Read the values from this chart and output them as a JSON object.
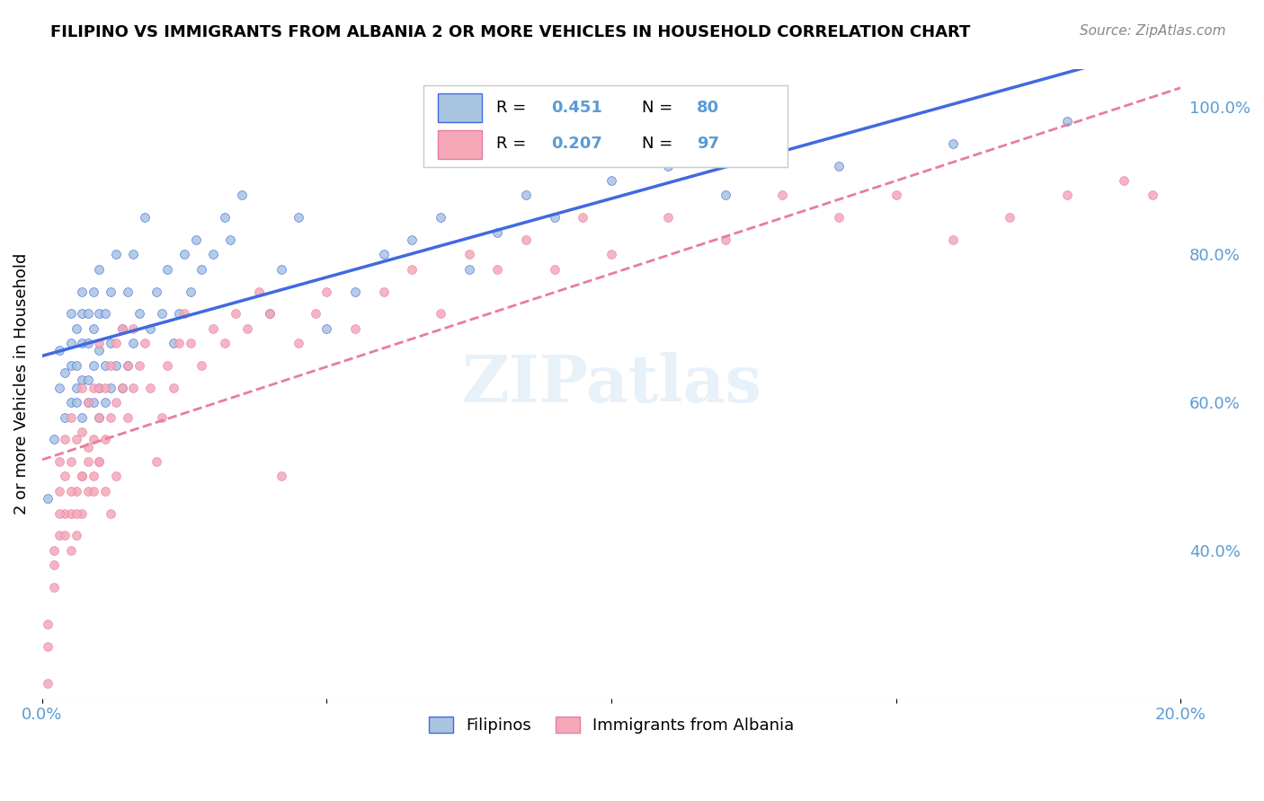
{
  "title": "FILIPINO VS IMMIGRANTS FROM ALBANIA 2 OR MORE VEHICLES IN HOUSEHOLD CORRELATION CHART",
  "source": "Source: ZipAtlas.com",
  "xlabel_bottom": "",
  "ylabel": "2 or more Vehicles in Household",
  "watermark": "ZIPatlas",
  "x_min": 0.0,
  "x_max": 0.2,
  "y_min": 0.2,
  "y_max": 1.05,
  "x_ticks": [
    0.0,
    0.05,
    0.1,
    0.15,
    0.2
  ],
  "x_tick_labels": [
    "0.0%",
    "",
    "",
    "",
    "20.0%"
  ],
  "y_ticks_right": [
    0.4,
    0.6,
    0.8,
    1.0
  ],
  "y_tick_labels_right": [
    "40.0%",
    "60.0%",
    "80.0%",
    "100.0%"
  ],
  "legend_r1": "R = 0.451",
  "legend_n1": "N = 80",
  "legend_r2": "R = 0.207",
  "legend_n2": "N = 97",
  "color_filipino": "#a8c4e0",
  "color_albania": "#f4a8b8",
  "color_line_filipino": "#4169e1",
  "color_line_albania": "#e87ca0",
  "color_tick_label": "#5b9bd5",
  "filipinos_x": [
    0.001,
    0.002,
    0.003,
    0.003,
    0.004,
    0.004,
    0.005,
    0.005,
    0.005,
    0.005,
    0.006,
    0.006,
    0.006,
    0.006,
    0.007,
    0.007,
    0.007,
    0.007,
    0.007,
    0.008,
    0.008,
    0.008,
    0.008,
    0.009,
    0.009,
    0.009,
    0.009,
    0.01,
    0.01,
    0.01,
    0.01,
    0.01,
    0.011,
    0.011,
    0.011,
    0.012,
    0.012,
    0.012,
    0.013,
    0.013,
    0.014,
    0.014,
    0.015,
    0.015,
    0.016,
    0.016,
    0.017,
    0.018,
    0.019,
    0.02,
    0.021,
    0.022,
    0.023,
    0.024,
    0.025,
    0.026,
    0.027,
    0.028,
    0.03,
    0.032,
    0.033,
    0.035,
    0.04,
    0.042,
    0.045,
    0.05,
    0.055,
    0.06,
    0.065,
    0.07,
    0.075,
    0.08,
    0.085,
    0.09,
    0.1,
    0.11,
    0.12,
    0.14,
    0.16,
    0.18
  ],
  "filipinos_y": [
    0.47,
    0.55,
    0.62,
    0.67,
    0.58,
    0.64,
    0.6,
    0.65,
    0.68,
    0.72,
    0.6,
    0.62,
    0.65,
    0.7,
    0.58,
    0.63,
    0.68,
    0.72,
    0.75,
    0.6,
    0.63,
    0.68,
    0.72,
    0.6,
    0.65,
    0.7,
    0.75,
    0.58,
    0.62,
    0.67,
    0.72,
    0.78,
    0.6,
    0.65,
    0.72,
    0.62,
    0.68,
    0.75,
    0.65,
    0.8,
    0.62,
    0.7,
    0.65,
    0.75,
    0.68,
    0.8,
    0.72,
    0.85,
    0.7,
    0.75,
    0.72,
    0.78,
    0.68,
    0.72,
    0.8,
    0.75,
    0.82,
    0.78,
    0.8,
    0.85,
    0.82,
    0.88,
    0.72,
    0.78,
    0.85,
    0.7,
    0.75,
    0.8,
    0.82,
    0.85,
    0.78,
    0.83,
    0.88,
    0.85,
    0.9,
    0.92,
    0.88,
    0.92,
    0.95,
    0.98
  ],
  "albania_x": [
    0.001,
    0.001,
    0.002,
    0.002,
    0.003,
    0.003,
    0.003,
    0.004,
    0.004,
    0.004,
    0.005,
    0.005,
    0.005,
    0.005,
    0.006,
    0.006,
    0.006,
    0.007,
    0.007,
    0.007,
    0.007,
    0.008,
    0.008,
    0.008,
    0.009,
    0.009,
    0.009,
    0.01,
    0.01,
    0.01,
    0.01,
    0.011,
    0.011,
    0.012,
    0.012,
    0.013,
    0.013,
    0.014,
    0.014,
    0.015,
    0.015,
    0.016,
    0.016,
    0.017,
    0.018,
    0.019,
    0.02,
    0.021,
    0.022,
    0.023,
    0.024,
    0.025,
    0.026,
    0.028,
    0.03,
    0.032,
    0.034,
    0.036,
    0.038,
    0.04,
    0.042,
    0.045,
    0.048,
    0.05,
    0.055,
    0.06,
    0.065,
    0.07,
    0.075,
    0.08,
    0.085,
    0.09,
    0.095,
    0.1,
    0.11,
    0.12,
    0.13,
    0.14,
    0.15,
    0.16,
    0.17,
    0.18,
    0.19,
    0.195,
    0.001,
    0.002,
    0.003,
    0.004,
    0.005,
    0.006,
    0.007,
    0.008,
    0.009,
    0.01,
    0.011,
    0.012,
    0.013
  ],
  "albania_y": [
    0.22,
    0.27,
    0.35,
    0.4,
    0.42,
    0.48,
    0.52,
    0.45,
    0.5,
    0.55,
    0.4,
    0.45,
    0.52,
    0.58,
    0.42,
    0.48,
    0.55,
    0.45,
    0.5,
    0.56,
    0.62,
    0.48,
    0.54,
    0.6,
    0.5,
    0.55,
    0.62,
    0.52,
    0.58,
    0.62,
    0.68,
    0.55,
    0.62,
    0.58,
    0.65,
    0.6,
    0.68,
    0.62,
    0.7,
    0.58,
    0.65,
    0.62,
    0.7,
    0.65,
    0.68,
    0.62,
    0.52,
    0.58,
    0.65,
    0.62,
    0.68,
    0.72,
    0.68,
    0.65,
    0.7,
    0.68,
    0.72,
    0.7,
    0.75,
    0.72,
    0.5,
    0.68,
    0.72,
    0.75,
    0.7,
    0.75,
    0.78,
    0.72,
    0.8,
    0.78,
    0.82,
    0.78,
    0.85,
    0.8,
    0.85,
    0.82,
    0.88,
    0.85,
    0.88,
    0.82,
    0.85,
    0.88,
    0.9,
    0.88,
    0.3,
    0.38,
    0.45,
    0.42,
    0.48,
    0.45,
    0.5,
    0.52,
    0.48,
    0.52,
    0.48,
    0.45,
    0.5
  ]
}
